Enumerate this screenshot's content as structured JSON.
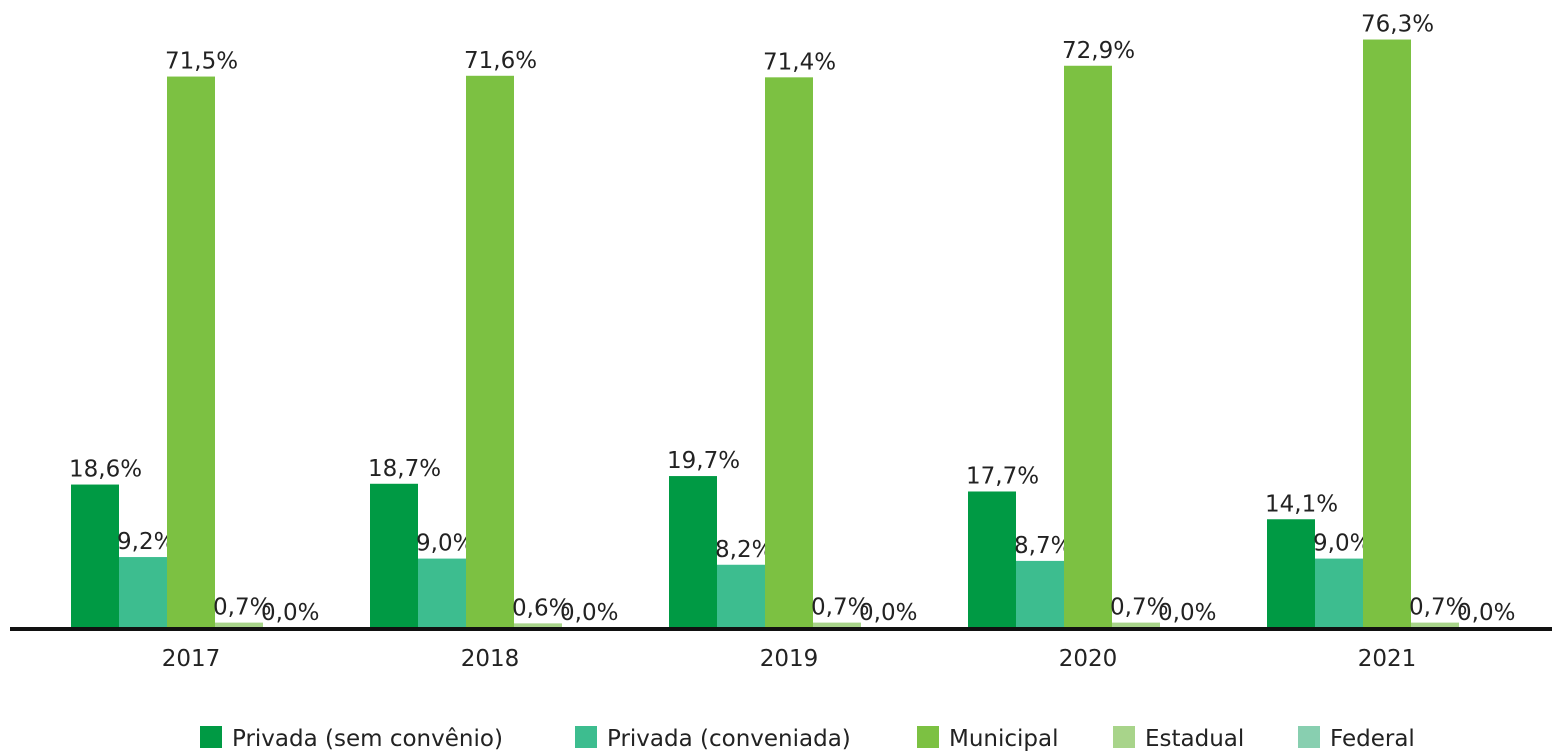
{
  "chart_data": {
    "type": "bar",
    "categories": [
      "2017",
      "2018",
      "2019",
      "2020",
      "2021"
    ],
    "series": [
      {
        "name": "Privada (sem convênio)",
        "color": "#009a44",
        "values": [
          18.6,
          18.7,
          19.7,
          17.7,
          14.1
        ],
        "value_labels": [
          "18,6%",
          "18,7%",
          "19,7%",
          "17,7%",
          "14,1%"
        ]
      },
      {
        "name": "Privada (conveniada)",
        "color": "#3dbd8f",
        "values": [
          9.2,
          9.0,
          8.2,
          8.7,
          9.0
        ],
        "value_labels": [
          "9,2%",
          "9,0%",
          "8,2%",
          "8,7%",
          "9,0%"
        ]
      },
      {
        "name": "Municipal",
        "color": "#7cc142",
        "values": [
          71.5,
          71.6,
          71.4,
          72.9,
          76.3
        ],
        "value_labels": [
          "71,5%",
          "71,6%",
          "71,4%",
          "72,9%",
          "76,3%"
        ]
      },
      {
        "name": "Estadual",
        "color": "#a8d48a",
        "values": [
          0.7,
          0.6,
          0.7,
          0.7,
          0.7
        ],
        "value_labels": [
          "0,7%",
          "0,6%",
          "0,7%",
          "0,7%",
          "0,7%"
        ]
      },
      {
        "name": "Federal",
        "color": "#88cfb0",
        "values": [
          0.0,
          0.0,
          0.0,
          0.0,
          0.0
        ],
        "value_labels": [
          "0,0%",
          "0,0%",
          "0,0%",
          "0,0%",
          "0,0%"
        ]
      }
    ],
    "ylim": [
      0,
      80
    ],
    "legend": "bottom"
  }
}
